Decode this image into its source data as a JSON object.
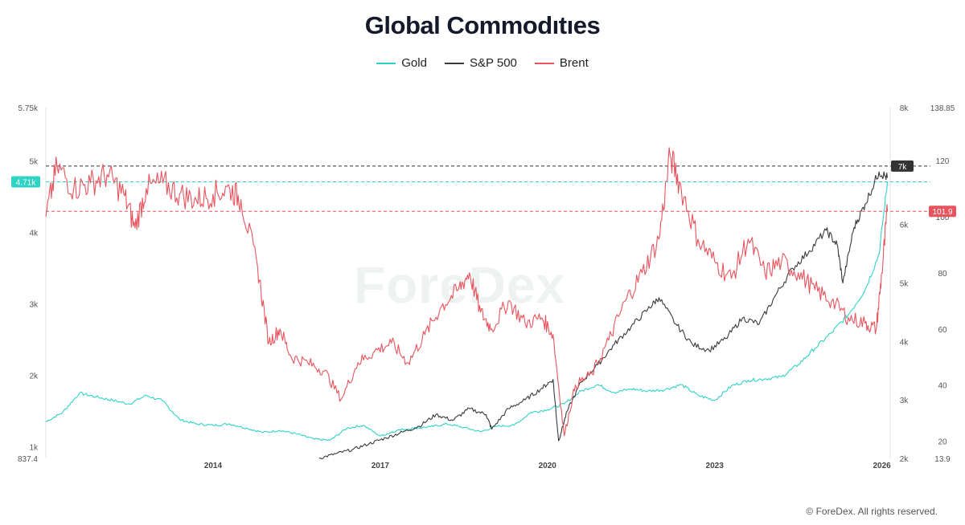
{
  "title": "Global Commodıtıes",
  "copyright": "© ForeDex. All rights reserved.",
  "watermark": "ForeDex",
  "colors": {
    "gold": "#2ed3c6",
    "sp500": "#3a3a3a",
    "brent": "#e8545e",
    "grid": "#ececec"
  },
  "chart_data": {
    "type": "line",
    "title": "Global Commodıtıes",
    "legend_position": "top-center",
    "x_ticks": [
      "2014",
      "2017",
      "2020",
      "2023",
      "2026"
    ],
    "x_tick_years": [
      2014,
      2017,
      2020,
      2023,
      2026
    ],
    "x_range": [
      2011.0,
      2026.15
    ],
    "axes": {
      "gold": {
        "side": "left",
        "range": [
          837.4,
          5750
        ],
        "ticks": [
          "5.75k",
          "5k",
          "4k",
          "3k",
          "2k",
          "1k",
          "837.4"
        ],
        "tick_values": [
          5750,
          5000,
          4000,
          3000,
          2000,
          1000,
          837.4
        ]
      },
      "sp500": {
        "side": "right-inner",
        "range": [
          2000,
          8000
        ],
        "ticks": [
          "8k",
          "7k",
          "6k",
          "5k",
          "4k",
          "3k",
          "2k"
        ],
        "tick_values": [
          8000,
          7000,
          6000,
          5000,
          4000,
          3000,
          2000
        ]
      },
      "brent": {
        "side": "right-outer",
        "range": [
          13.9,
          138.85
        ],
        "ticks": [
          "138.85",
          "120",
          "100",
          "80",
          "60",
          "40",
          "20",
          "13.9"
        ],
        "tick_values": [
          138.85,
          120,
          100,
          80,
          60,
          40,
          20,
          13.9
        ]
      }
    },
    "reference_lines": [
      {
        "series": "sp500",
        "value": 7000,
        "label": "7k",
        "color": "#333333"
      },
      {
        "series": "gold",
        "value": 4710,
        "label": "4.71k",
        "color": "#2ed3c6"
      },
      {
        "series": "brent",
        "value": 101.9,
        "label": "101.9",
        "color": "#e8545e"
      }
    ],
    "series": [
      {
        "name": "Gold",
        "axis": "gold",
        "x": [
          2011.0,
          2011.3,
          2011.6,
          2011.9,
          2012.2,
          2012.5,
          2012.8,
          2013.1,
          2013.4,
          2013.7,
          2014.0,
          2014.3,
          2014.6,
          2014.9,
          2015.2,
          2015.5,
          2015.8,
          2016.1,
          2016.4,
          2016.7,
          2017.0,
          2017.3,
          2017.6,
          2017.9,
          2018.2,
          2018.5,
          2018.8,
          2019.1,
          2019.4,
          2019.7,
          2020.0,
          2020.3,
          2020.6,
          2020.9,
          2021.2,
          2021.5,
          2021.8,
          2022.1,
          2022.4,
          2022.7,
          2023.0,
          2023.3,
          2023.6,
          2023.9,
          2024.2,
          2024.5,
          2024.8,
          2025.1,
          2025.4,
          2025.7,
          2025.95,
          2026.1
        ],
        "y": [
          1350,
          1480,
          1750,
          1700,
          1650,
          1600,
          1720,
          1640,
          1380,
          1320,
          1300,
          1320,
          1260,
          1200,
          1230,
          1180,
          1110,
          1090,
          1260,
          1300,
          1150,
          1230,
          1260,
          1280,
          1320,
          1270,
          1210,
          1290,
          1300,
          1480,
          1520,
          1600,
          1780,
          1870,
          1760,
          1810,
          1780,
          1800,
          1870,
          1720,
          1650,
          1850,
          1930,
          1950,
          1980,
          2150,
          2380,
          2600,
          2850,
          3200,
          3700,
          4710
        ]
      },
      {
        "name": "S&P 500",
        "axis": "sp500",
        "x": [
          2015.9,
          2016.2,
          2016.5,
          2016.8,
          2017.1,
          2017.4,
          2017.7,
          2018.0,
          2018.3,
          2018.6,
          2018.9,
          2019.0,
          2019.3,
          2019.6,
          2019.9,
          2020.1,
          2020.2,
          2020.35,
          2020.6,
          2020.9,
          2021.2,
          2021.5,
          2021.8,
          2022.0,
          2022.3,
          2022.6,
          2022.9,
          2023.2,
          2023.5,
          2023.8,
          2024.1,
          2024.4,
          2024.7,
          2025.0,
          2025.2,
          2025.3,
          2025.5,
          2025.7,
          2025.95,
          2026.1
        ],
        "y": [
          2000,
          2080,
          2150,
          2250,
          2350,
          2450,
          2550,
          2750,
          2650,
          2850,
          2750,
          2500,
          2850,
          3000,
          3200,
          3350,
          2300,
          2800,
          3300,
          3600,
          3950,
          4250,
          4550,
          4750,
          4300,
          3950,
          3850,
          4050,
          4400,
          4300,
          4800,
          5250,
          5550,
          5900,
          5650,
          5000,
          5950,
          6350,
          6900,
          6800
        ]
      },
      {
        "name": "Brent",
        "axis": "brent",
        "x": [
          2011.0,
          2011.2,
          2011.5,
          2011.8,
          2012.1,
          2012.4,
          2012.6,
          2012.8,
          2013.1,
          2013.4,
          2013.7,
          2014.0,
          2014.3,
          2014.5,
          2014.8,
          2015.0,
          2015.2,
          2015.4,
          2015.7,
          2016.0,
          2016.3,
          2016.6,
          2016.9,
          2017.2,
          2017.5,
          2017.8,
          2018.1,
          2018.4,
          2018.6,
          2018.8,
          2019.0,
          2019.3,
          2019.6,
          2019.9,
          2020.1,
          2020.3,
          2020.5,
          2020.8,
          2021.1,
          2021.4,
          2021.7,
          2022.0,
          2022.2,
          2022.4,
          2022.7,
          2023.0,
          2023.3,
          2023.6,
          2023.9,
          2024.2,
          2024.5,
          2024.8,
          2025.1,
          2025.4,
          2025.7,
          2025.9,
          2026.0,
          2026.1
        ],
        "y": [
          100,
          118,
          110,
          112,
          115,
          108,
          96,
          110,
          112,
          108,
          106,
          108,
          110,
          106,
          82,
          55,
          60,
          50,
          48,
          45,
          35,
          48,
          52,
          55,
          48,
          58,
          68,
          74,
          80,
          66,
          60,
          70,
          62,
          64,
          58,
          22,
          40,
          44,
          56,
          70,
          80,
          92,
          122,
          110,
          92,
          84,
          78,
          92,
          80,
          84,
          80,
          74,
          70,
          64,
          62,
          60,
          80,
          102
        ]
      }
    ]
  }
}
